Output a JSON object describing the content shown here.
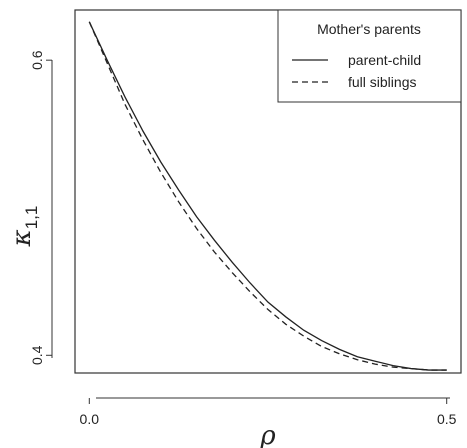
{
  "chart_data": {
    "type": "line",
    "xlabel": "ρ",
    "ylabel_main": "κ",
    "ylabel_sub": "1,1",
    "xlim": [
      -0.02,
      0.52
    ],
    "ylim": [
      0.388,
      0.634
    ],
    "x_ticks": [
      0.0,
      0.5
    ],
    "x_tick_labels": [
      "0.0",
      "0.5"
    ],
    "y_ticks": [
      0.4,
      0.6
    ],
    "y_tick_labels": [
      "0.4",
      "0.6"
    ],
    "grid": false,
    "legend": {
      "title": "Mother's parents",
      "placement": "top-right"
    },
    "series": [
      {
        "name": "parent-child",
        "line_style": "solid",
        "color": "#222222",
        "x": [
          0.0,
          0.025,
          0.05,
          0.075,
          0.1,
          0.125,
          0.15,
          0.175,
          0.2,
          0.225,
          0.25,
          0.275,
          0.3,
          0.325,
          0.35,
          0.375,
          0.4,
          0.425,
          0.45,
          0.475,
          0.5
        ],
        "y": [
          0.626,
          0.6,
          0.575,
          0.552,
          0.531,
          0.512,
          0.494,
          0.478,
          0.463,
          0.449,
          0.436,
          0.426,
          0.417,
          0.41,
          0.404,
          0.399,
          0.396,
          0.393,
          0.391,
          0.39,
          0.39
        ]
      },
      {
        "name": "full siblings",
        "line_style": "dashed",
        "color": "#222222",
        "x": [
          0.0,
          0.025,
          0.05,
          0.075,
          0.1,
          0.125,
          0.15,
          0.175,
          0.2,
          0.225,
          0.25,
          0.275,
          0.3,
          0.325,
          0.35,
          0.375,
          0.4,
          0.425,
          0.45,
          0.475,
          0.5
        ],
        "y": [
          0.626,
          0.598,
          0.57,
          0.546,
          0.524,
          0.504,
          0.486,
          0.47,
          0.456,
          0.443,
          0.431,
          0.421,
          0.413,
          0.406,
          0.401,
          0.397,
          0.394,
          0.392,
          0.391,
          0.39,
          0.39
        ]
      }
    ]
  }
}
